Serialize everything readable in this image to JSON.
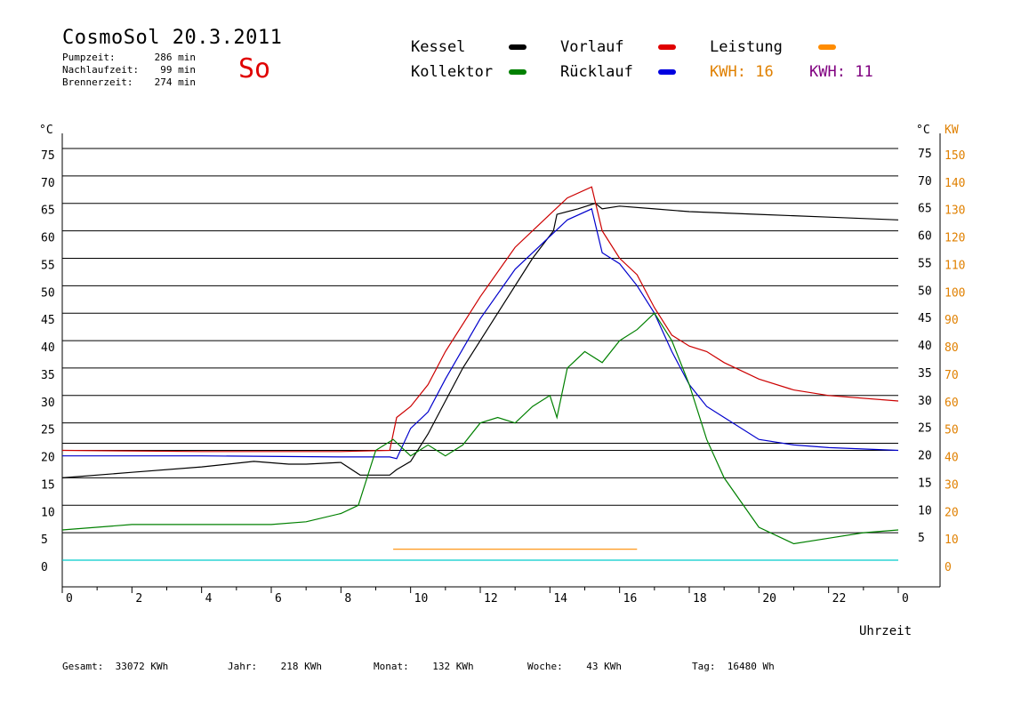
{
  "header": {
    "title": "CosmoSol 20.3.2011",
    "weekday": "So",
    "stats": [
      {
        "label": "Pumpzeit:",
        "value": "286 min"
      },
      {
        "label": "Nachlaufzeit:",
        "value": "99 min"
      },
      {
        "label": "Brennerzeit:",
        "value": "274 min"
      }
    ]
  },
  "legend": {
    "kessel": "Kessel",
    "kollektor": "Kollektor",
    "vorlauf": "Vorlauf",
    "ruecklauf": "Rücklauf",
    "leistung": "Leistung",
    "kwh_orange_label": "KWH:",
    "kwh_orange_value": "16",
    "kwh_purple_label": "KWH:",
    "kwh_purple_value": "11"
  },
  "footer": {
    "gesamt_label": "Gesamt:",
    "gesamt_value": "33072 KWh",
    "jahr_label": "Jahr:",
    "jahr_value": "218 KWh",
    "monat_label": "Monat:",
    "monat_value": "132 KWh",
    "woche_label": "Woche:",
    "woche_value": "43 KWh",
    "tag_label": "Tag:",
    "tag_value": "16480 Wh"
  },
  "colors": {
    "kessel": "#000000",
    "kollektor": "#008000",
    "vorlauf": "#cc0000",
    "ruecklauf": "#0000cc",
    "leistung": "#ff8c00",
    "kwh2": "#800080",
    "pump": "#00cccc",
    "right_axis": "#e08000"
  },
  "chart_data": {
    "type": "line",
    "xlabel": "Uhrzeit",
    "ylabel_left": "°C",
    "ylabel_right": "KW",
    "xlim": [
      0,
      24
    ],
    "ylim": [
      0,
      80
    ],
    "ylim_right": [
      0,
      160
    ],
    "x_ticks": [
      "0",
      "2",
      "4",
      "6",
      "8",
      "10",
      "12",
      "14",
      "16",
      "18",
      "20",
      "22",
      "0"
    ],
    "y_ticks_left": [
      "0",
      "5",
      "10",
      "15",
      "20",
      "25",
      "30",
      "35",
      "40",
      "45",
      "50",
      "55",
      "60",
      "65",
      "70",
      "75"
    ],
    "y_ticks_right_c": [
      "5",
      "10",
      "15",
      "20",
      "25",
      "30",
      "35",
      "40",
      "45",
      "50",
      "55",
      "60",
      "65",
      "70",
      "75"
    ],
    "y_ticks_right_kw": [
      "0",
      "10",
      "20",
      "30",
      "40",
      "50",
      "60",
      "70",
      "80",
      "90",
      "100",
      "110",
      "120",
      "130",
      "140",
      "150"
    ],
    "grid": true,
    "series": [
      {
        "name": "Kessel",
        "x": [
          0,
          2,
          4,
          5.5,
          6.5,
          7,
          8,
          8.55,
          9.4,
          9.6,
          10,
          10.5,
          11.5,
          12.5,
          13.5,
          14.1,
          14.2,
          14.8,
          15.3,
          15.5,
          16,
          17,
          18,
          20,
          22,
          24
        ],
        "y": [
          15,
          16,
          17,
          18,
          17.5,
          17.5,
          17.8,
          15.5,
          15.5,
          16.5,
          18,
          23,
          35,
          45,
          55,
          60,
          63,
          64,
          65,
          64,
          64.5,
          64,
          63.5,
          63,
          62.5,
          62
        ]
      },
      {
        "name": "Vorlauf",
        "x": [
          0,
          4,
          8,
          9.4,
          9.6,
          10,
          10.5,
          11,
          12,
          13,
          14,
          14.5,
          15.2,
          15.5,
          16,
          16.5,
          17,
          17.5,
          18,
          18.5,
          19,
          20,
          21,
          22,
          24
        ],
        "y": [
          20,
          19.8,
          19.8,
          20,
          26,
          28,
          32,
          38,
          48,
          57,
          63,
          66,
          68,
          60,
          55,
          52,
          46,
          41,
          39,
          38,
          36,
          33,
          31,
          30,
          29
        ]
      },
      {
        "name": "Rücklauf",
        "x": [
          0,
          4,
          8,
          9.4,
          9.6,
          10,
          10.5,
          11,
          12,
          13,
          14,
          14.5,
          15.2,
          15.5,
          16,
          16.5,
          17,
          17.5,
          18,
          18.5,
          19,
          20,
          21,
          22,
          24
        ],
        "y": [
          19,
          19,
          18.8,
          18.8,
          18.5,
          24,
          27,
          33,
          44,
          53,
          59,
          62,
          64,
          56,
          54,
          50,
          45,
          38,
          32,
          28,
          26,
          22,
          21,
          20.5,
          20
        ]
      },
      {
        "name": "Kollektor",
        "x": [
          0,
          2,
          4,
          6,
          7,
          8,
          8.5,
          9,
          9.5,
          10,
          10.5,
          11,
          11.5,
          12,
          12.5,
          13,
          13.5,
          14,
          14.2,
          14.5,
          15,
          15.5,
          16,
          16.5,
          17,
          17.5,
          18,
          18.5,
          19,
          20,
          21,
          22,
          23,
          24
        ],
        "y": [
          5.5,
          6.5,
          6.5,
          6.5,
          7,
          8.5,
          10,
          20,
          22,
          19,
          21,
          19,
          21,
          25,
          26,
          25,
          28,
          30,
          26,
          35,
          38,
          36,
          40,
          42,
          45,
          40,
          32,
          22,
          15,
          6,
          3,
          4,
          5,
          5.5
        ]
      },
      {
        "name": "Leistung",
        "x": [
          9.5,
          10.5,
          12,
          14,
          15,
          16.5
        ],
        "y": [
          2,
          2,
          2,
          2,
          2,
          2
        ]
      }
    ]
  }
}
